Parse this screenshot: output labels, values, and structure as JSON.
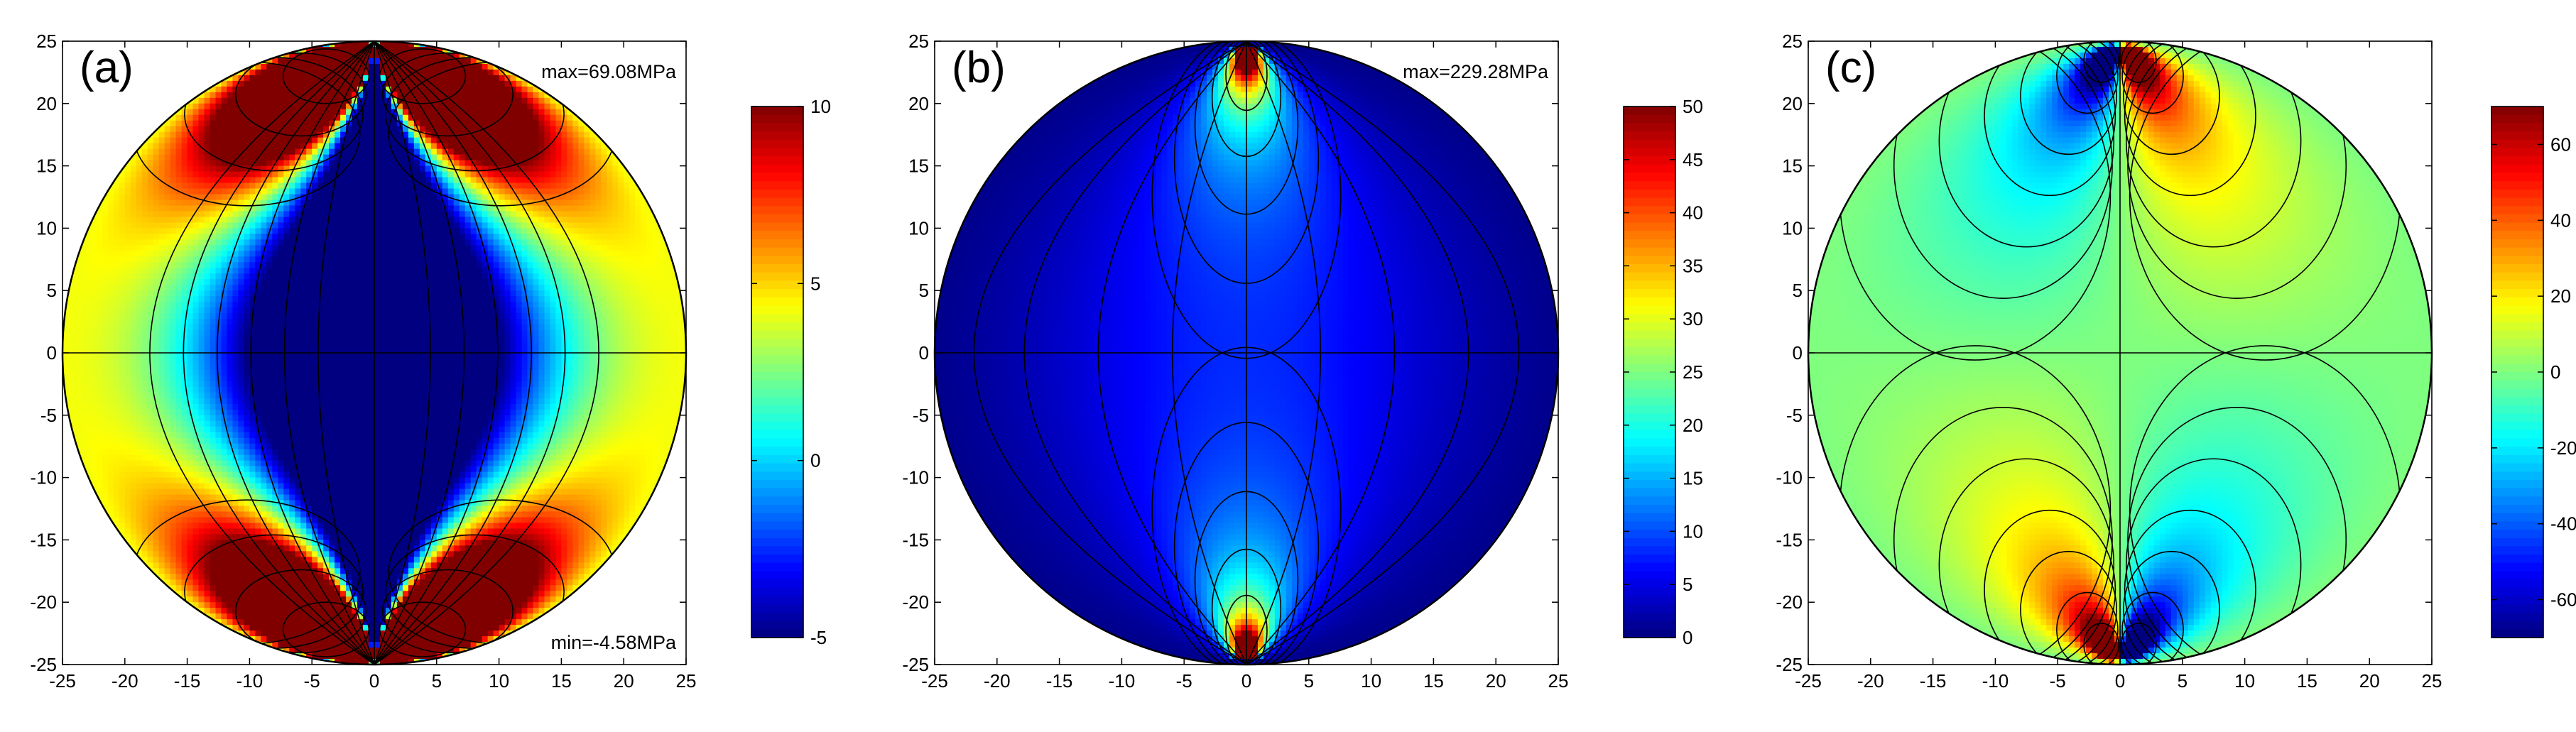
{
  "chart_data": [
    {
      "type": "heatmap",
      "panel_label": "(a)",
      "xlim": [
        -25,
        25
      ],
      "ylim": [
        -25,
        25
      ],
      "xticks": [
        -25,
        -20,
        -15,
        -10,
        -5,
        0,
        5,
        10,
        15,
        20,
        25
      ],
      "yticks": [
        -25,
        -20,
        -15,
        -10,
        -5,
        0,
        5,
        10,
        15,
        20,
        25
      ],
      "colorbar": {
        "min": -5,
        "max": 10,
        "ticks": [
          -5,
          0,
          5,
          10
        ]
      },
      "annotations": {
        "max": "max=69.08MPa",
        "min": "min=-4.58MPa"
      },
      "field": "sigma_x",
      "domain_radius": 25,
      "colormap": "jet"
    },
    {
      "type": "heatmap",
      "panel_label": "(b)",
      "xlim": [
        -25,
        25
      ],
      "ylim": [
        -25,
        25
      ],
      "xticks": [
        -25,
        -20,
        -15,
        -10,
        -5,
        0,
        5,
        10,
        15,
        20,
        25
      ],
      "yticks": [
        -25,
        -20,
        -15,
        -10,
        -5,
        0,
        5,
        10,
        15,
        20,
        25
      ],
      "colorbar": {
        "min": 0,
        "max": 50,
        "ticks": [
          0,
          5,
          10,
          15,
          20,
          25,
          30,
          35,
          40,
          45,
          50
        ]
      },
      "annotations": {
        "max": "max=229.28MPa"
      },
      "field": "sigma_y",
      "domain_radius": 25,
      "colormap": "jet"
    },
    {
      "type": "heatmap",
      "panel_label": "(c)",
      "xlim": [
        -25,
        25
      ],
      "ylim": [
        -25,
        25
      ],
      "xticks": [
        -25,
        -20,
        -15,
        -10,
        -5,
        0,
        5,
        10,
        15,
        20,
        25
      ],
      "yticks": [
        -25,
        -20,
        -15,
        -10,
        -5,
        0,
        5,
        10,
        15,
        20,
        25
      ],
      "colorbar": {
        "min": -70,
        "max": 70,
        "ticks": [
          -60,
          -40,
          -20,
          0,
          20,
          40,
          60
        ]
      },
      "annotations": {},
      "field": "tau_xy",
      "domain_radius": 25,
      "colormap": "jet"
    }
  ]
}
